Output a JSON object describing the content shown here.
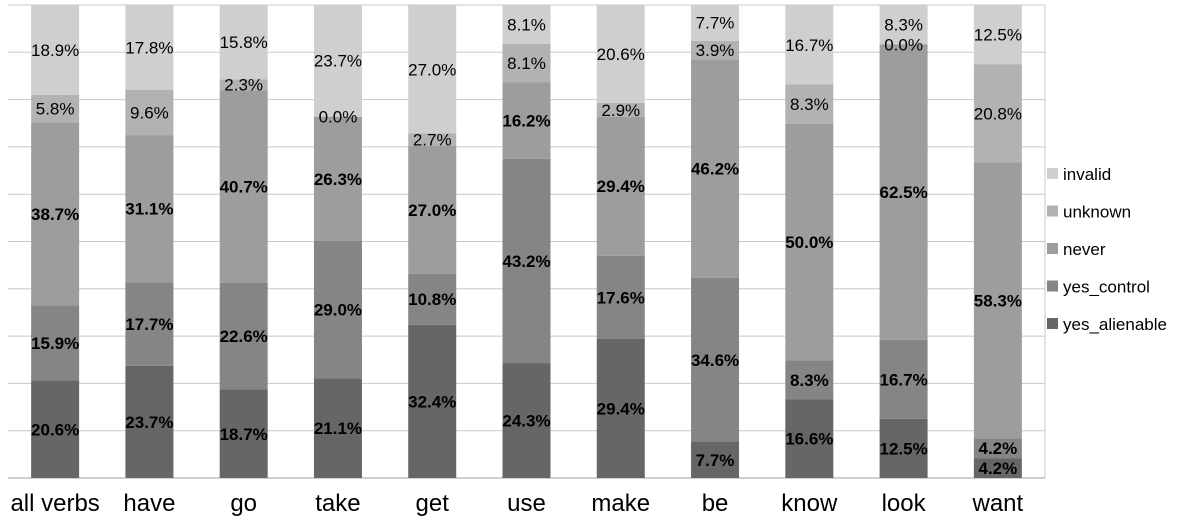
{
  "chart_data": {
    "type": "bar",
    "stacked": true,
    "percent_stacked": true,
    "title": "",
    "xlabel": "",
    "ylabel": "",
    "ylim": [
      0,
      100
    ],
    "grid": true,
    "legend_position": "right",
    "categories": [
      "all verbs",
      "have",
      "go",
      "take",
      "get",
      "use",
      "make",
      "be",
      "know",
      "look",
      "want"
    ],
    "series": [
      {
        "name": "yes_alienable",
        "color": "#666666",
        "bold_labels": true,
        "values": [
          20.6,
          23.7,
          18.7,
          21.1,
          32.4,
          24.3,
          29.4,
          7.7,
          16.6,
          12.5,
          4.2
        ],
        "labels": [
          "20.6%",
          "23.7%",
          "18.7%",
          "21.1%",
          "32.4%",
          "24.3%",
          "29.4%",
          "7.7%",
          "16.6%",
          "12.5%",
          "4.2%"
        ]
      },
      {
        "name": "yes_control",
        "color": "#858585",
        "bold_labels": true,
        "values": [
          15.9,
          17.7,
          22.6,
          29.0,
          10.8,
          43.2,
          17.6,
          34.6,
          8.3,
          16.7,
          4.2
        ],
        "labels": [
          "15.9%",
          "17.7%",
          "22.6%",
          "29.0%",
          "10.8%",
          "43.2%",
          "17.6%",
          "34.6%",
          "8.3%",
          "16.7%",
          "4.2%"
        ]
      },
      {
        "name": "never",
        "color": "#9d9d9d",
        "bold_labels": true,
        "values": [
          38.7,
          31.1,
          40.7,
          26.3,
          27.0,
          16.2,
          29.4,
          46.2,
          50.0,
          62.5,
          58.3
        ],
        "labels": [
          "38.7%",
          "31.1%",
          "40.7%",
          "26.3%",
          "27.0%",
          "16.2%",
          "29.4%",
          "46.2%",
          "50.0%",
          "62.5%",
          "58.3%"
        ]
      },
      {
        "name": "unknown",
        "color": "#b2b2b2",
        "bold_labels": false,
        "values": [
          5.8,
          9.6,
          2.3,
          0.0,
          2.7,
          8.1,
          2.9,
          3.9,
          8.3,
          0.0,
          20.8
        ],
        "labels": [
          "5.8%",
          "9.6%",
          "2.3%",
          "0.0%",
          "2.7%",
          "8.1%",
          "2.9%",
          "3.9%",
          "8.3%",
          "0.0%",
          "20.8%"
        ]
      },
      {
        "name": "invalid",
        "color": "#cfcfcf",
        "bold_labels": false,
        "values": [
          18.9,
          17.8,
          15.8,
          23.7,
          27.0,
          8.1,
          20.6,
          7.7,
          16.7,
          8.3,
          12.5
        ],
        "labels": [
          "18.9%",
          "17.8%",
          "15.8%",
          "23.7%",
          "27.0%",
          "8.1%",
          "20.6%",
          "7.7%",
          "16.7%",
          "8.3%",
          "12.5%"
        ]
      }
    ]
  }
}
